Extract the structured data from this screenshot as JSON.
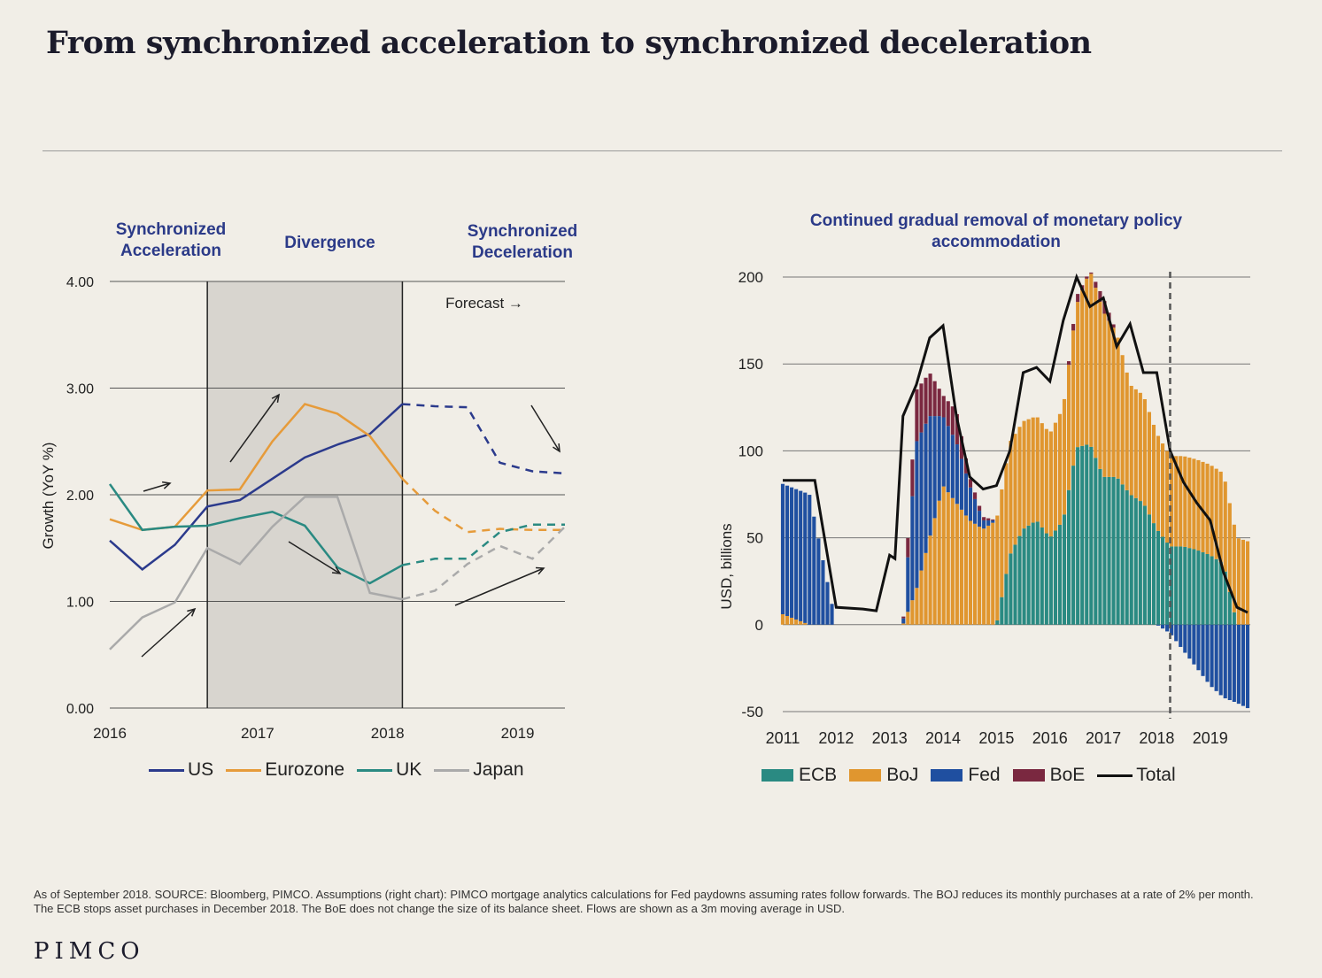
{
  "page": {
    "title": "From synchronized acceleration to synchronized deceleration",
    "footnote": "As of September 2018. SOURCE: Bloomberg, PIMCO. Assumptions (right chart): PIMCO mortgage analytics calculations for Fed paydowns assuming rates follow forwards. The BOJ reduces its monthly purchases at a rate of 2% per month. The ECB stops asset purchases in December 2018. The BoE does not change the size of its balance sheet. Flows are shown as a 3m moving average in USD.",
    "logo": "PIMCO"
  },
  "left": {
    "phase_labels": {
      "acceleration": "Synchronized\nAcceleration",
      "divergence": "Divergence",
      "deceleration": "Synchronized\nDeceleration"
    },
    "forecast_label": "Forecast →",
    "colors": {
      "US": "#2b3a8c",
      "Eurozone": "#e69b3a",
      "UK": "#2a8a82",
      "Japan": "#aaaaaa"
    }
  },
  "right": {
    "colors": {
      "ECB": "#2a8a82",
      "BoJ": "#e0962f",
      "Fed": "#1f4fa0",
      "BoE": "#7a2840",
      "Total": "#111111"
    }
  },
  "chart_data": [
    {
      "type": "line",
      "title": "",
      "ylabel": "Growth (YoY %)",
      "xlabel": "",
      "ylim": [
        0,
        4
      ],
      "yticks": [
        "0.00",
        "1.00",
        "2.00",
        "3.00",
        "4.00"
      ],
      "xticks": [
        "2016",
        "2017",
        "2018",
        "2019"
      ],
      "forecast_start": 2018.25,
      "shaded_range": [
        2016.75,
        2018.25
      ],
      "series": [
        {
          "name": "US",
          "x": [
            2016,
            2016.25,
            2016.5,
            2016.75,
            2017,
            2017.25,
            2017.5,
            2017.75,
            2018,
            2018.25,
            2018.5,
            2018.75,
            2019,
            2019.25,
            2019.5
          ],
          "values": [
            1.57,
            1.3,
            1.53,
            1.89,
            1.95,
            2.15,
            2.35,
            2.47,
            2.57,
            2.85,
            2.83,
            2.82,
            2.3,
            2.22,
            2.2
          ]
        },
        {
          "name": "Eurozone",
          "x": [
            2016,
            2016.25,
            2016.5,
            2016.75,
            2017,
            2017.25,
            2017.5,
            2017.75,
            2018,
            2018.25,
            2018.5,
            2018.75,
            2019,
            2019.25,
            2019.5
          ],
          "values": [
            1.77,
            1.67,
            1.7,
            2.04,
            2.05,
            2.5,
            2.85,
            2.76,
            2.55,
            2.15,
            1.85,
            1.65,
            1.68,
            1.67,
            1.67
          ]
        },
        {
          "name": "UK",
          "x": [
            2016,
            2016.25,
            2016.5,
            2016.75,
            2017,
            2017.25,
            2017.5,
            2017.75,
            2018,
            2018.25,
            2018.5,
            2018.75,
            2019,
            2019.25,
            2019.5
          ],
          "values": [
            2.1,
            1.67,
            1.7,
            1.71,
            1.78,
            1.84,
            1.71,
            1.32,
            1.17,
            1.34,
            1.4,
            1.4,
            1.65,
            1.72,
            1.72
          ]
        },
        {
          "name": "Japan",
          "x": [
            2016,
            2016.25,
            2016.5,
            2016.75,
            2017,
            2017.25,
            2017.5,
            2017.75,
            2018,
            2018.25,
            2018.5,
            2018.75,
            2019,
            2019.25,
            2019.5
          ],
          "values": [
            0.55,
            0.85,
            0.99,
            1.5,
            1.35,
            1.7,
            1.98,
            1.98,
            1.08,
            1.02,
            1.1,
            1.35,
            1.52,
            1.4,
            1.7
          ]
        }
      ],
      "legend": [
        "US",
        "Eurozone",
        "UK",
        "Japan"
      ],
      "legend_position": "bottom"
    },
    {
      "type": "bar",
      "stacked": true,
      "title": "Continued gradual removal of monetary policy accommodation",
      "xlabel": "",
      "ylabel": "USD, billions",
      "ylim": [
        -50,
        200
      ],
      "yticks": [
        "-50",
        "0",
        "50",
        "100",
        "150",
        "200"
      ],
      "xticks": [
        "2011",
        "2012",
        "2013",
        "2014",
        "2015",
        "2016",
        "2017",
        "2018",
        "2019"
      ],
      "x": [
        2011,
        2011.5,
        2012,
        2012.25,
        2012.5,
        2012.75,
        2013,
        2013.25,
        2013.5,
        2013.75,
        2014,
        2014.25,
        2014.5,
        2014.75,
        2015,
        2015.25,
        2015.5,
        2015.75,
        2016,
        2016.25,
        2016.5,
        2016.75,
        2017,
        2017.25,
        2017.5,
        2017.75,
        2018,
        2018.25,
        2018.5,
        2018.75,
        2019,
        2019.25,
        2019.5,
        2019.7
      ],
      "series": [
        {
          "name": "ECB",
          "values": [
            0,
            0,
            0,
            0,
            0,
            0,
            0,
            0,
            0,
            0,
            0,
            0,
            0,
            0,
            0,
            40,
            55,
            60,
            50,
            60,
            102,
            104,
            85,
            85,
            75,
            70,
            55,
            45,
            45,
            43,
            40,
            35,
            0,
            0
          ]
        },
        {
          "name": "BoJ",
          "values": [
            6,
            0,
            0,
            0,
            0,
            0,
            0,
            0,
            20,
            50,
            80,
            70,
            60,
            55,
            60,
            65,
            62,
            60,
            60,
            65,
            82,
            100,
            95,
            83,
            63,
            62,
            55,
            52,
            52,
            52,
            52,
            52,
            50,
            48
          ]
        },
        {
          "name": "Fed",
          "values": [
            75,
            75,
            0,
            0,
            0,
            0,
            0,
            0,
            85,
            70,
            40,
            35,
            20,
            5,
            0,
            0,
            0,
            0,
            0,
            0,
            0,
            0,
            0,
            0,
            0,
            0,
            0,
            -5,
            -15,
            -25,
            -35,
            -42,
            -45,
            -48
          ]
        },
        {
          "name": "BoE",
          "values": [
            0,
            0,
            0,
            0,
            0,
            0,
            0,
            0,
            30,
            25,
            12,
            18,
            5,
            2,
            0,
            0,
            0,
            0,
            0,
            0,
            5,
            0,
            8,
            0,
            0,
            0,
            0,
            0,
            0,
            0,
            0,
            0,
            0,
            0
          ]
        }
      ],
      "total": {
        "name": "Total",
        "x": [
          2011,
          2011.5,
          2011.6,
          2012,
          2012.5,
          2012.75,
          2013,
          2013.1,
          2013.25,
          2013.5,
          2013.75,
          2014,
          2014.25,
          2014.5,
          2014.75,
          2015,
          2015.25,
          2015.5,
          2015.75,
          2016,
          2016.25,
          2016.5,
          2016.75,
          2017,
          2017.25,
          2017.5,
          2017.75,
          2018,
          2018.25,
          2018.5,
          2018.75,
          2019,
          2019.25,
          2019.5,
          2019.7
        ],
        "values": [
          83,
          83,
          83,
          10,
          9,
          8,
          40,
          38,
          120,
          138,
          165,
          172,
          120,
          85,
          78,
          80,
          100,
          145,
          148,
          140,
          175,
          200,
          183,
          188,
          160,
          173,
          145,
          145,
          100,
          82,
          70,
          60,
          30,
          10,
          7
        ]
      },
      "forecast_marker": 2018.25,
      "legend": [
        "ECB",
        "BoJ",
        "Fed",
        "BoE",
        "Total"
      ],
      "legend_position": "bottom"
    }
  ]
}
